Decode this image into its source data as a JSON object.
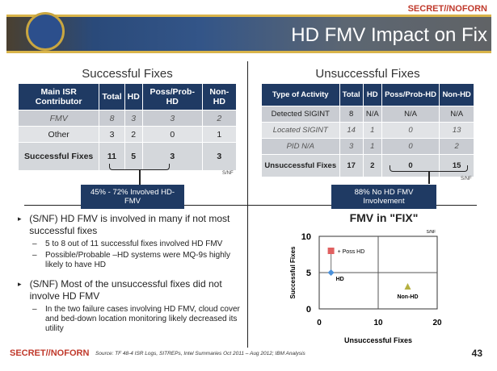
{
  "classification": "SECRET//NOFORN",
  "header": {
    "title": "HD FMV Impact on Fix"
  },
  "successful": {
    "title": "Successful Fixes",
    "headers": [
      "Main ISR Contributor",
      "Total",
      "HD",
      "Poss/Prob-HD",
      "Non-HD"
    ],
    "rows": [
      [
        "FMV",
        "8",
        "3",
        "3",
        "2"
      ],
      [
        "Other",
        "3",
        "2",
        "0",
        "1"
      ],
      [
        "Successful Fixes",
        "11",
        "5",
        "3",
        "3"
      ]
    ],
    "marking": "S/NF",
    "callout": "45% - 72% Involved HD-FMV"
  },
  "unsuccessful": {
    "title": "Unsuccessful Fixes",
    "headers": [
      "Type of Activity",
      "Total",
      "HD",
      "Poss/Prob-HD",
      "Non-HD"
    ],
    "rows": [
      [
        "Detected SIGINT",
        "8",
        "N/A",
        "N/A",
        "N/A"
      ],
      [
        "Located SIGINT",
        "14",
        "1",
        "0",
        "13"
      ],
      [
        "PID N/A",
        "3",
        "1",
        "0",
        "2"
      ],
      [
        "Unsuccessful Fixes",
        "17",
        "2",
        "0",
        "15"
      ]
    ],
    "marking": "S/NF",
    "callout": "88% No HD FMV Involvement"
  },
  "bullets": [
    {
      "text": "(S/NF) HD FMV is involved in many if not most successful fixes",
      "subs": [
        "5 to 8 out of 11 successful fixes involved HD FMV",
        "Possible/Probable –HD systems were MQ-9s highly likely to have HD"
      ]
    },
    {
      "text": "(S/NF) Most of the unsuccessful fixes did not involve HD FMV",
      "subs": [
        "In the two failure cases involving HD FMV, cloud cover and bed-down location monitoring likely decreased its utility"
      ]
    }
  ],
  "chart_data": {
    "type": "scatter",
    "title": "FMV in \"FIX\"",
    "xlabel": "Unsuccessful Fixes",
    "ylabel": "Successful Fixes",
    "xlim": [
      0,
      20
    ],
    "ylim": [
      0,
      10
    ],
    "xticks": [
      "0",
      "10",
      "20"
    ],
    "yticks": [
      "0",
      "5",
      "10"
    ],
    "grid": true,
    "marking": "S/NF",
    "series": [
      {
        "name": "HD",
        "x": 2,
        "y": 5,
        "marker": "diamond",
        "color": "#4a90d9"
      },
      {
        "name": "+ Poss HD",
        "x": 2,
        "y": 8,
        "marker": "square",
        "color": "#e06060"
      },
      {
        "name": "Non-HD",
        "x": 15,
        "y": 3,
        "marker": "triangle",
        "color": "#b5b040"
      }
    ]
  },
  "footer": {
    "source": "Source: TF 48-4 ISR Logs, SITREPs, Intel Summaries Oct 2011 – Aug 2012; IBM Analysis",
    "page": "43"
  }
}
